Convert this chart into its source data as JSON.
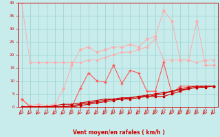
{
  "xlabel": "Vent moyen/en rafales ( km/h )",
  "background_color": "#c8ecec",
  "grid_color": "#a0d4d4",
  "x": [
    0,
    1,
    2,
    3,
    4,
    5,
    6,
    7,
    8,
    9,
    10,
    11,
    12,
    13,
    14,
    15,
    16,
    17,
    18,
    19,
    20,
    21,
    22,
    23
  ],
  "series": [
    {
      "color": "#ffaaaa",
      "linewidth": 0.7,
      "marker": "s",
      "markersize": 1.8,
      "y": [
        40,
        17,
        17,
        17,
        17,
        17,
        17,
        17,
        18,
        18,
        19,
        20,
        21,
        21,
        22,
        23,
        26,
        18,
        18,
        18,
        18,
        17,
        18,
        18
      ]
    },
    {
      "color": "#ffaaaa",
      "linewidth": 0.7,
      "marker": "D",
      "markersize": 1.8,
      "y": [
        3,
        0.5,
        1,
        0.5,
        1,
        7,
        16,
        22,
        23,
        21,
        22,
        23,
        23,
        24,
        23,
        26,
        27,
        37,
        33,
        18,
        18,
        33,
        16,
        16
      ]
    },
    {
      "color": "#ff5555",
      "linewidth": 0.8,
      "marker": "+",
      "markersize": 3.0,
      "y": [
        3,
        0,
        0,
        0,
        0,
        0,
        0,
        7,
        13,
        10,
        9.5,
        16,
        9,
        14,
        13,
        6,
        6,
        17,
        5,
        8,
        8,
        8,
        8,
        8
      ]
    },
    {
      "color": "#cc0000",
      "linewidth": 0.8,
      "marker": "o",
      "markersize": 1.8,
      "y": [
        0,
        0,
        0,
        0,
        0,
        0,
        0.5,
        1,
        1.5,
        2,
        2.5,
        3,
        3,
        3.5,
        4,
        4.5,
        5,
        5.5,
        6,
        7,
        7.5,
        8,
        8,
        8
      ]
    },
    {
      "color": "#cc0000",
      "linewidth": 0.8,
      "marker": "^",
      "markersize": 1.8,
      "y": [
        0,
        0,
        0,
        0,
        0.5,
        1,
        1,
        1.5,
        2,
        2.5,
        3,
        3,
        3.5,
        3.5,
        4,
        4,
        4.5,
        5,
        6,
        6.5,
        7,
        7.5,
        8,
        8
      ]
    },
    {
      "color": "#cc0000",
      "linewidth": 0.8,
      "marker": "s",
      "markersize": 1.8,
      "y": [
        0,
        0,
        0,
        0,
        0,
        0,
        0,
        0.5,
        1,
        1.5,
        2,
        2.5,
        3,
        3,
        3.5,
        4,
        4,
        4,
        5,
        6,
        7,
        7.5,
        7.5,
        8
      ]
    }
  ],
  "xlim": [
    -0.5,
    23.5
  ],
  "ylim": [
    0,
    40
  ],
  "yticks": [
    0,
    5,
    10,
    15,
    20,
    25,
    30,
    35,
    40
  ],
  "xticks": [
    0,
    1,
    2,
    3,
    4,
    5,
    6,
    7,
    8,
    9,
    10,
    11,
    12,
    13,
    14,
    15,
    16,
    17,
    18,
    19,
    20,
    21,
    22,
    23
  ]
}
